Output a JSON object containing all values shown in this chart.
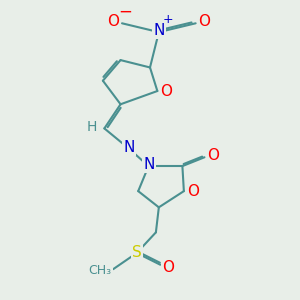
{
  "background_color": "#e8eee8",
  "bond_color": "#4a9090",
  "bond_width": 1.5,
  "atom_colors": {
    "O": "#ff0000",
    "N": "#0000cc",
    "S": "#cccc00",
    "C": "#4a9090",
    "H": "#4a9090",
    "plus": "#0000cc",
    "minus": "#ff0000"
  }
}
